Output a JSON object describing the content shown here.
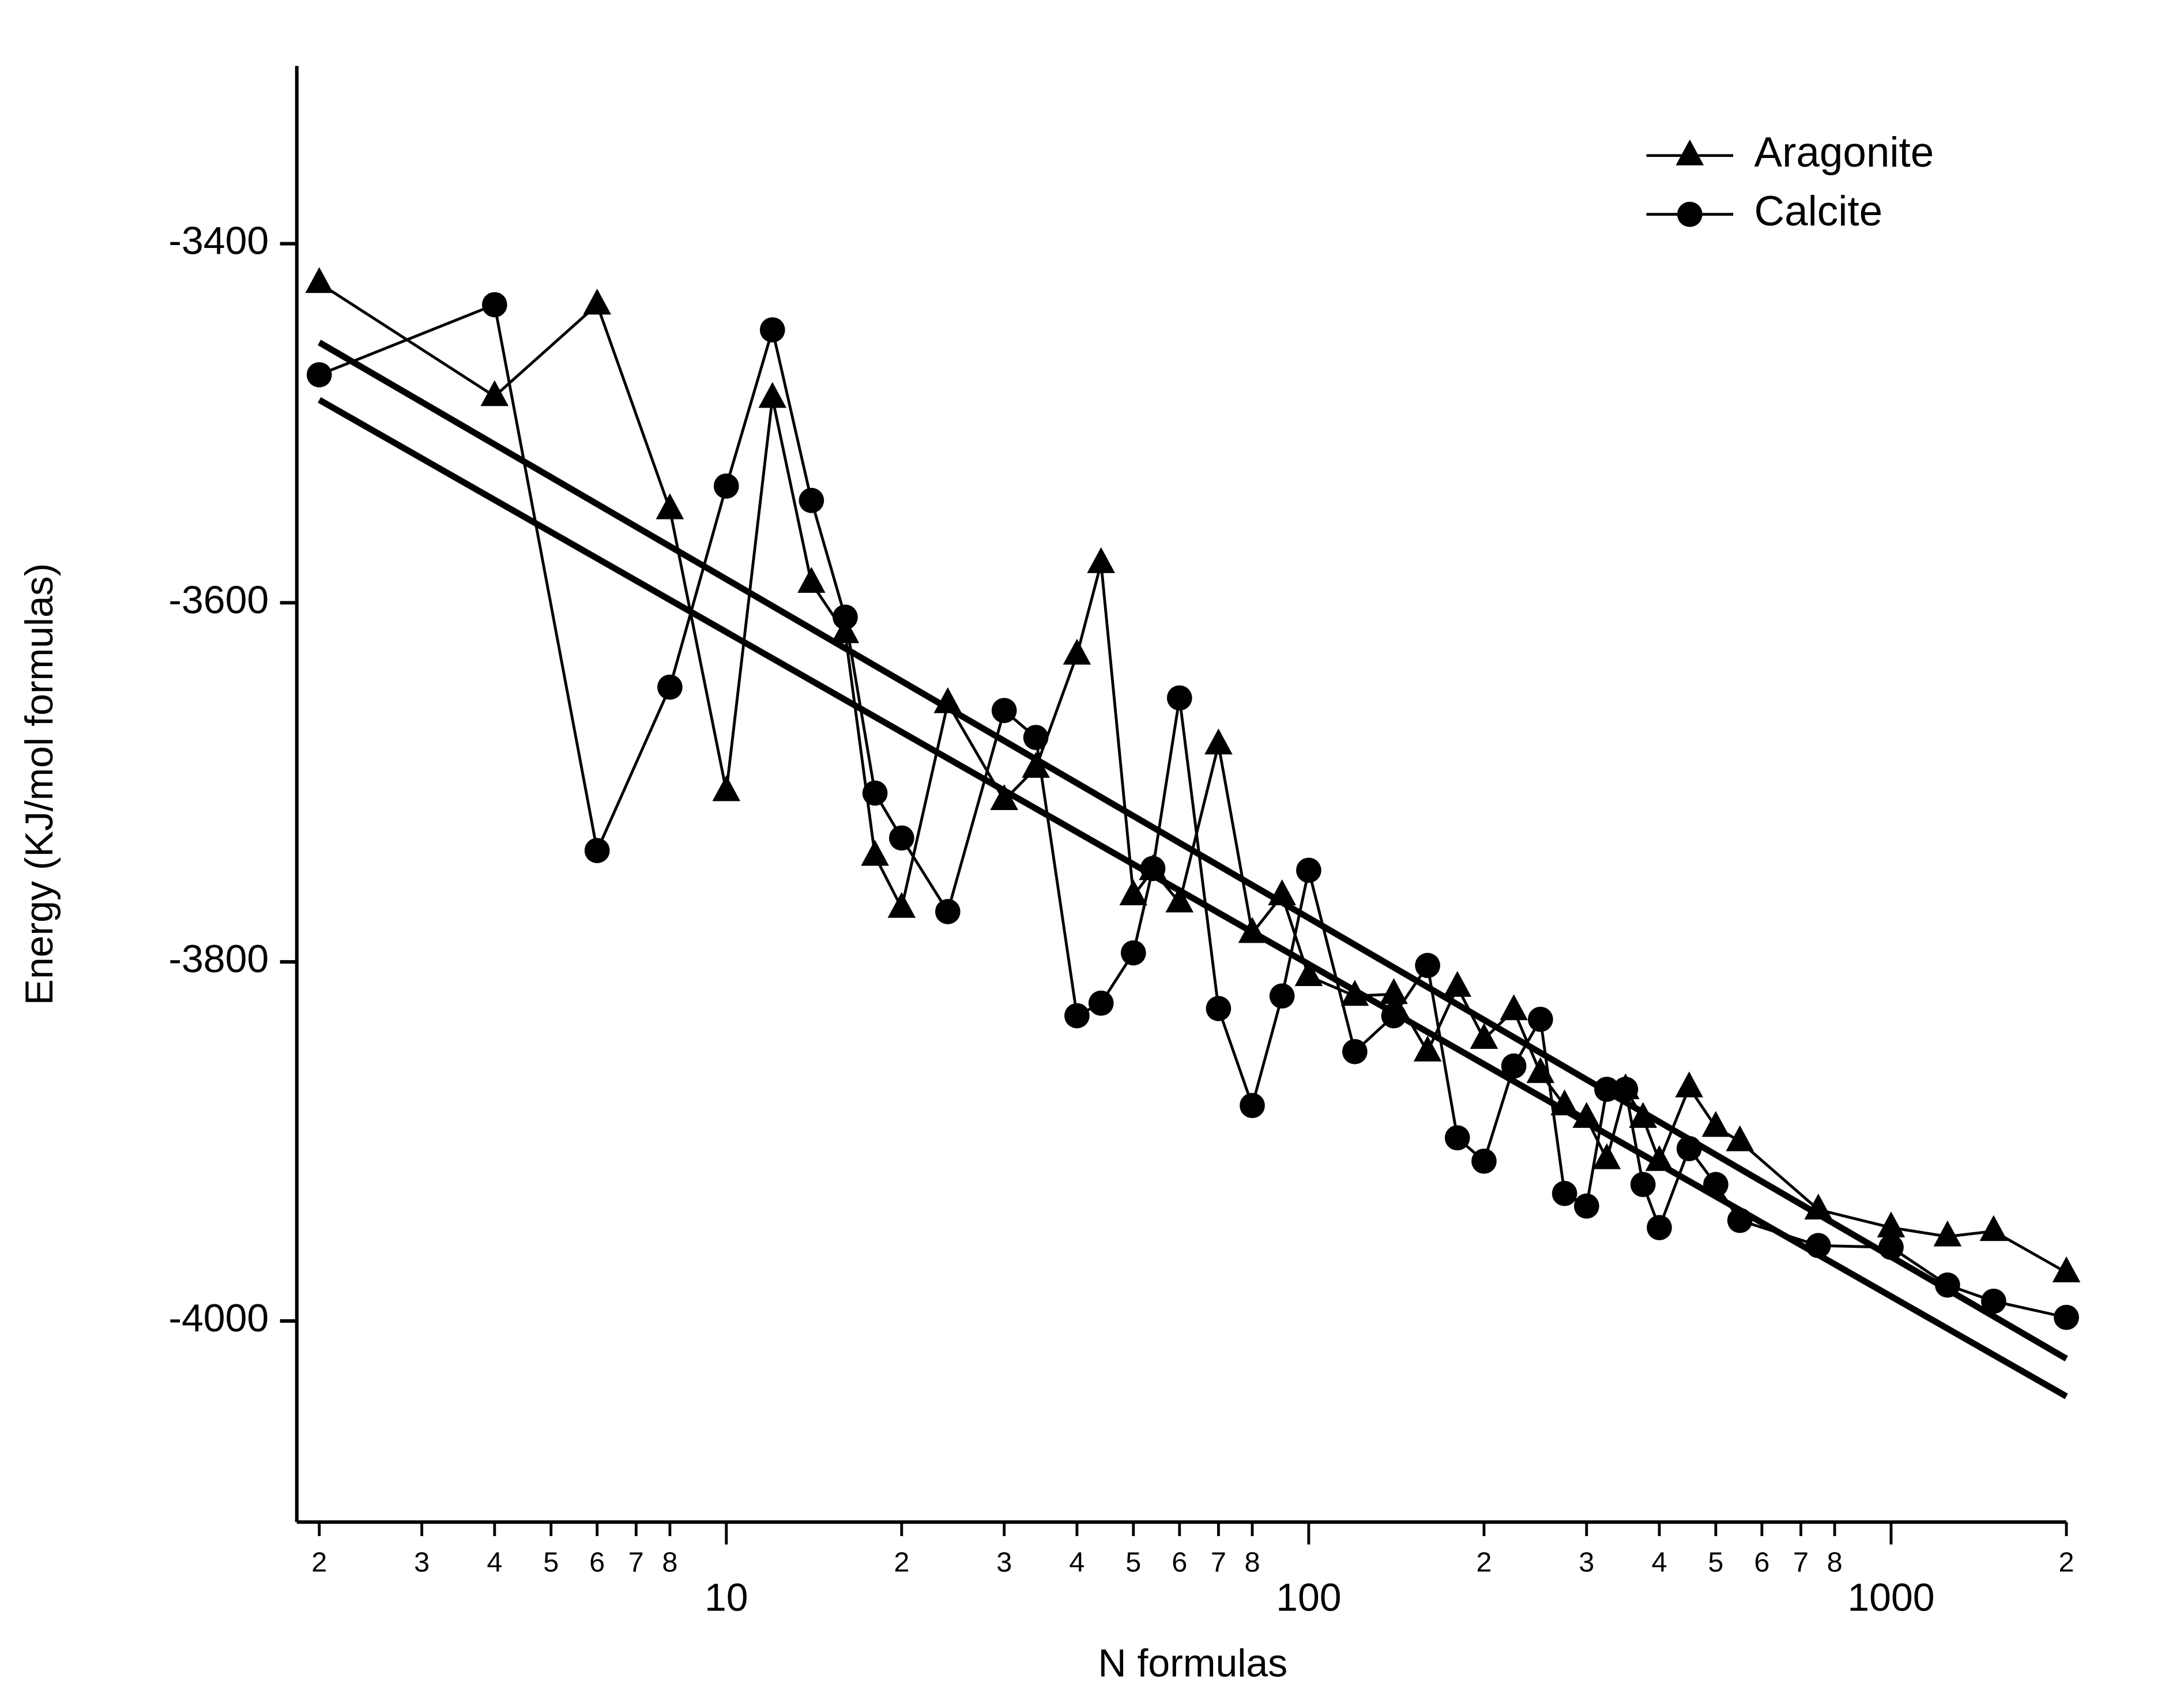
{
  "chart_data": {
    "type": "line",
    "x_label": "N formulas",
    "y_label": "Energy (KJ/mol formulas)",
    "xscale": "log",
    "xlim": [
      1.83,
      2000
    ],
    "ylim": [
      -4112,
      -3301
    ],
    "xticks": [
      2,
      3,
      4,
      5,
      6,
      7,
      8,
      10,
      {
        "value": 20,
        "label": "2"
      },
      {
        "value": 30,
        "label": "3"
      },
      {
        "value": 40,
        "label": "4"
      },
      {
        "value": 50,
        "label": "5"
      },
      {
        "value": 60,
        "label": "6"
      },
      {
        "value": 70,
        "label": "7"
      },
      {
        "value": 80,
        "label": "8"
      },
      100,
      {
        "value": 200,
        "label": "2"
      },
      {
        "value": 300,
        "label": "3"
      },
      {
        "value": 400,
        "label": "4"
      },
      {
        "value": 500,
        "label": "5"
      },
      {
        "value": 600,
        "label": "6"
      },
      {
        "value": 700,
        "label": "7"
      },
      {
        "value": 800,
        "label": "8"
      },
      1000,
      {
        "value": 2000,
        "label": "2"
      }
    ],
    "yticks": [
      -3400,
      -3600,
      -3800,
      -4000
    ],
    "legend": "top-right",
    "x": [
      2,
      4,
      6,
      8,
      10,
      12,
      14,
      16,
      18,
      20,
      24,
      30,
      34,
      40,
      44,
      50,
      54,
      60,
      70,
      80,
      90,
      100,
      120,
      140,
      160,
      180,
      200,
      225,
      250,
      275,
      300,
      325,
      350,
      375,
      400,
      450,
      500,
      550,
      750,
      1000,
      1250,
      1500,
      2000
    ],
    "series": [
      {
        "name": "Aragonite",
        "color": "#000000",
        "marker": "triangle",
        "values": [
          -3422,
          -3485,
          -3434,
          -3548,
          -3705,
          -3486,
          -3589,
          -3617,
          -3741,
          -3770,
          -3656,
          -3710,
          -3692,
          -3629,
          -3578,
          -3763,
          -3749,
          -3767,
          -3679,
          -3784,
          -3763,
          -3808,
          -3819,
          -3818,
          -3850,
          -3814,
          -3843,
          -3827,
          -3862,
          -3880,
          -3887,
          -3910,
          -3871,
          -3887,
          -3911,
          -3870,
          -3892,
          -3900,
          -3938,
          -3948,
          -3953,
          -3950,
          -3973
        ]
      },
      {
        "name": "Calcite",
        "color": "#000000",
        "marker": "circle",
        "values": [
          -3473,
          -3434,
          -3738,
          -3647,
          -3535,
          -3448,
          -3543,
          -3608,
          -3706,
          -3731,
          -3772,
          -3660,
          -3675,
          -3830,
          -3823,
          -3795,
          -3748,
          -3653,
          -3826,
          -3880,
          -3819,
          -3749,
          -3850,
          -3830,
          -3802,
          -3898,
          -3911,
          -3858,
          -3832,
          -3929,
          -3936,
          -3871,
          -3871,
          -3924,
          -3948,
          -3904,
          -3924,
          -3944,
          -3958,
          -3959,
          -3980,
          -3989,
          -3998
        ]
      }
    ],
    "fits": [
      {
        "color": "#000000",
        "x": [
          2,
          2000
        ],
        "values": [
          -3455,
          -4021
        ]
      },
      {
        "color": "#000000",
        "x": [
          2,
          2000
        ],
        "values": [
          -3487,
          -4042
        ]
      }
    ]
  }
}
